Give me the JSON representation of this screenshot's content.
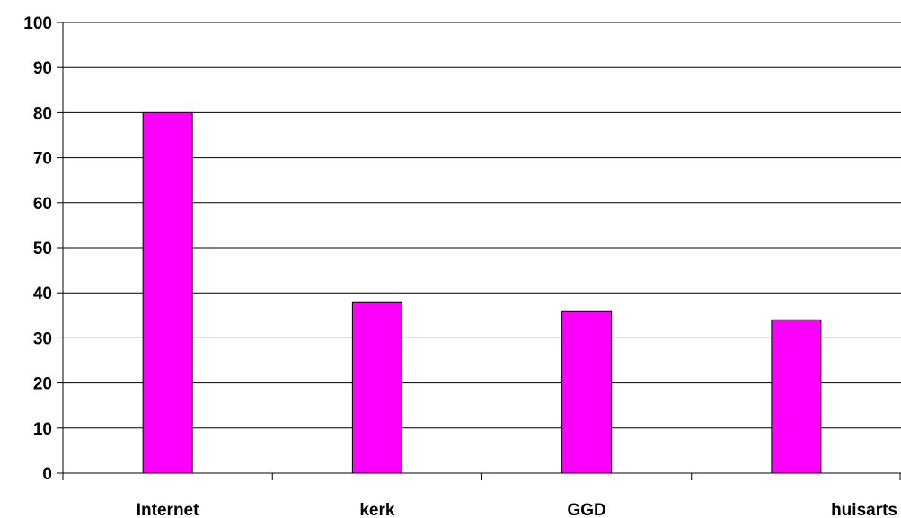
{
  "chart_data": {
    "type": "bar",
    "title": "",
    "xlabel": "",
    "ylabel": "",
    "categories": [
      "Internet",
      "kerk",
      "GGD",
      "huisarts"
    ],
    "values": [
      80,
      38,
      36,
      34
    ],
    "ylim": [
      0,
      100
    ],
    "yticks": [
      "0",
      "10",
      "20",
      "30",
      "40",
      "50",
      "60",
      "70",
      "80",
      "90",
      "100"
    ],
    "grid": true,
    "legend": "none",
    "bar_color": "#ff00ff",
    "bar_edge_color": "#000000"
  }
}
